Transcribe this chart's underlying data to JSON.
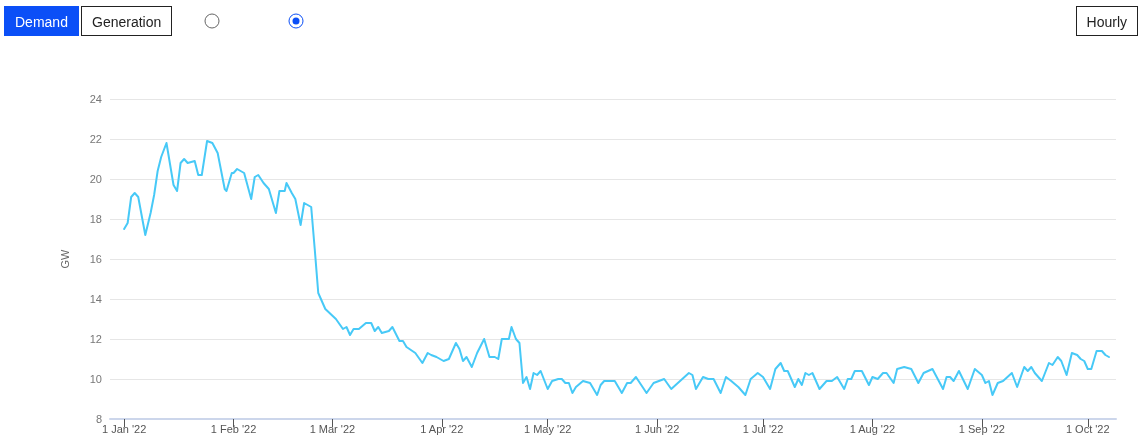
{
  "chart_data": {
    "type": "line",
    "ylabel": "GW",
    "annotations": [
      "Demand",
      "Generation",
      "Hourly"
    ],
    "x": [
      "2022-01-01",
      "2022-01-02",
      "2022-01-03",
      "2022-01-04",
      "2022-01-05",
      "2022-01-07",
      "2022-01-08T12:00",
      "2022-01-09T12:00",
      "2022-01-10T12:00",
      "2022-01-11T12:00",
      "2022-01-13",
      "2022-01-15",
      "2022-01-16",
      "2022-01-17",
      "2022-01-18",
      "2022-01-19",
      "2022-01-21",
      "2022-01-22",
      "2022-01-23",
      "2022-01-24T12:00",
      "2022-01-26",
      "2022-01-27T12:00",
      "2022-01-29T12:00",
      "2022-01-30",
      "2022-01-31T12:00",
      "2022-02-01",
      "2022-02-02",
      "2022-02-04",
      "2022-02-06",
      "2022-02-07",
      "2022-02-08",
      "2022-02-09T12:00",
      "2022-02-11",
      "2022-02-13",
      "2022-02-14",
      "2022-02-15T12:00",
      "2022-02-16",
      "2022-02-17T12:00",
      "2022-02-18T12:00",
      "2022-02-20",
      "2022-02-21",
      "2022-02-23",
      "2022-02-24",
      "2022-02-25",
      "2022-02-27",
      "2022-03-02",
      "2022-03-04",
      "2022-03-05",
      "2022-03-06",
      "2022-03-07",
      "2022-03-08T12:00",
      "2022-03-10T12:00",
      "2022-03-12",
      "2022-03-13",
      "2022-03-14",
      "2022-03-15",
      "2022-03-17",
      "2022-03-18",
      "2022-03-20",
      "2022-03-21",
      "2022-03-22",
      "2022-03-24T12:00",
      "2022-03-26T12:00",
      "2022-03-28",
      "2022-03-29",
      "2022-03-30T12:00",
      "2022-04-01T12:00",
      "2022-04-03",
      "2022-04-05",
      "2022-04-06",
      "2022-04-07",
      "2022-04-08",
      "2022-04-09T12:00",
      "2022-04-11",
      "2022-04-13",
      "2022-04-14T12:00",
      "2022-04-16",
      "2022-04-17",
      "2022-04-18",
      "2022-04-20",
      "2022-04-20T18:00",
      "2022-04-22",
      "2022-04-23",
      "2022-04-24",
      "2022-04-25",
      "2022-04-26",
      "2022-04-27",
      "2022-04-28",
      "2022-04-29",
      "2022-05-01",
      "2022-05-02T06:00",
      "2022-05-04",
      "2022-05-05",
      "2022-05-06",
      "2022-05-07",
      "2022-05-08",
      "2022-05-09",
      "2022-05-11",
      "2022-05-13",
      "2022-05-15",
      "2022-05-16",
      "2022-05-17",
      "2022-05-18",
      "2022-05-20",
      "2022-05-22",
      "2022-05-23T12:00",
      "2022-05-24T12:00",
      "2022-05-26",
      "2022-05-27T12:00",
      "2022-05-29",
      "2022-05-31",
      "2022-06-01T12:00",
      "2022-06-03",
      "2022-06-05",
      "2022-06-07T12:00",
      "2022-06-10",
      "2022-06-11",
      "2022-06-12",
      "2022-06-14",
      "2022-06-15T12:00",
      "2022-06-17",
      "2022-06-19",
      "2022-06-20T12:00",
      "2022-06-22",
      "2022-06-24",
      "2022-06-26",
      "2022-06-27T12:00",
      "2022-06-29T12:00",
      "2022-07-01",
      "2022-07-03",
      "2022-07-04T12:00",
      "2022-07-06",
      "2022-07-07",
      "2022-07-08",
      "2022-07-10",
      "2022-07-11",
      "2022-07-12",
      "2022-07-13",
      "2022-07-14",
      "2022-07-15",
      "2022-07-17",
      "2022-07-19",
      "2022-07-20T12:00",
      "2022-07-22",
      "2022-07-24",
      "2022-07-25",
      "2022-07-26",
      "2022-07-27",
      "2022-07-29",
      "2022-07-31",
      "2022-08-01",
      "2022-08-02T12:00",
      "2022-08-04",
      "2022-08-05",
      "2022-08-07",
      "2022-08-08",
      "2022-08-10",
      "2022-08-12",
      "2022-08-14",
      "2022-08-15T12:00",
      "2022-08-18",
      "2022-08-19T12:00",
      "2022-08-21",
      "2022-08-22",
      "2022-08-23",
      "2022-08-24",
      "2022-08-25T12:00",
      "2022-08-28",
      "2022-08-30",
      "2022-09-01",
      "2022-09-02",
      "2022-09-03",
      "2022-09-04",
      "2022-09-05T12:00",
      "2022-09-07",
      "2022-09-09T12:00",
      "2022-09-11",
      "2022-09-13",
      "2022-09-14",
      "2022-09-15",
      "2022-09-16",
      "2022-09-18",
      "2022-09-20",
      "2022-09-21",
      "2022-09-22T12:00",
      "2022-09-23T12:00",
      "2022-09-25",
      "2022-09-26T12:00",
      "2022-09-28",
      "2022-09-29",
      "2022-09-30",
      "2022-10-01",
      "2022-10-02",
      "2022-10-03T12:00",
      "2022-10-05",
      "2022-10-06",
      "2022-10-07"
    ],
    "series": [
      {
        "color": "#47c9f7",
        "values": [
          17.5,
          17.8,
          19.1,
          19.3,
          19.1,
          17.2,
          18.3,
          19.2,
          20.4,
          21.1,
          21.8,
          19.7,
          19.4,
          20.8,
          21.0,
          20.8,
          20.9,
          20.2,
          20.2,
          21.9,
          21.8,
          21.3,
          19.5,
          19.4,
          20.3,
          20.3,
          20.5,
          20.3,
          19.0,
          20.1,
          20.2,
          19.8,
          19.5,
          18.3,
          19.4,
          19.4,
          19.8,
          19.3,
          19.0,
          17.7,
          18.8,
          18.6,
          16.5,
          14.3,
          13.5,
          13.0,
          12.5,
          12.6,
          12.2,
          12.5,
          12.5,
          12.8,
          12.8,
          12.4,
          12.6,
          12.3,
          12.4,
          12.6,
          11.9,
          11.9,
          11.6,
          11.3,
          10.8,
          11.3,
          11.2,
          11.1,
          10.9,
          11.0,
          11.8,
          11.5,
          10.9,
          11.1,
          10.6,
          11.3,
          12.0,
          11.1,
          11.1,
          11.0,
          12.0,
          12.0,
          12.6,
          12.0,
          11.8,
          9.8,
          10.1,
          9.5,
          10.3,
          10.2,
          10.4,
          9.5,
          9.9,
          10.0,
          10.0,
          9.8,
          9.8,
          9.3,
          9.6,
          9.9,
          9.8,
          9.2,
          9.7,
          9.9,
          9.9,
          9.9,
          9.3,
          9.8,
          9.8,
          10.1,
          9.7,
          9.3,
          9.8,
          9.9,
          10.0,
          9.5,
          9.9,
          10.3,
          10.2,
          9.5,
          10.1,
          10.0,
          10.0,
          9.3,
          10.1,
          9.9,
          9.6,
          9.2,
          10.0,
          10.3,
          10.1,
          9.5,
          10.5,
          10.8,
          10.4,
          10.4,
          9.6,
          10.0,
          9.7,
          10.3,
          10.2,
          10.3,
          9.5,
          9.9,
          9.9,
          10.1,
          9.5,
          10.0,
          10.0,
          10.4,
          10.4,
          9.7,
          10.1,
          10.0,
          10.3,
          10.3,
          9.8,
          10.5,
          10.6,
          10.5,
          9.8,
          10.3,
          10.5,
          10.0,
          9.5,
          10.1,
          10.1,
          9.9,
          10.4,
          9.5,
          10.5,
          10.2,
          9.8,
          9.9,
          9.2,
          9.8,
          9.9,
          10.3,
          9.6,
          10.6,
          10.4,
          10.6,
          10.3,
          9.9,
          10.8,
          10.7,
          11.1,
          10.9,
          10.2,
          11.3,
          11.2,
          11.0,
          10.9,
          10.5,
          10.5,
          11.4,
          11.4,
          11.2,
          11.1
        ]
      }
    ],
    "xlim": [
      "2021-12-28",
      "2022-10-09"
    ],
    "xticks": [
      {
        "value": "2022-01-01",
        "label": "1 Jan '22"
      },
      {
        "value": "2022-02-01",
        "label": "1 Feb '22"
      },
      {
        "value": "2022-03-01",
        "label": "1 Mar '22"
      },
      {
        "value": "2022-04-01",
        "label": "1 Apr '22"
      },
      {
        "value": "2022-05-01",
        "label": "1 May '22"
      },
      {
        "value": "2022-06-01",
        "label": "1 Jun '22"
      },
      {
        "value": "2022-07-01",
        "label": "1 Jul '22"
      },
      {
        "value": "2022-08-01",
        "label": "1 Aug '22"
      },
      {
        "value": "2022-09-01",
        "label": "1 Sep '22"
      },
      {
        "value": "2022-10-01",
        "label": "1 Oct '22"
      }
    ],
    "ylim": [
      8,
      24
    ],
    "yticks": [
      8,
      10,
      12,
      14,
      16,
      18,
      20,
      22,
      24
    ],
    "grid": "y",
    "marker": "none",
    "line_style": "solid"
  }
}
